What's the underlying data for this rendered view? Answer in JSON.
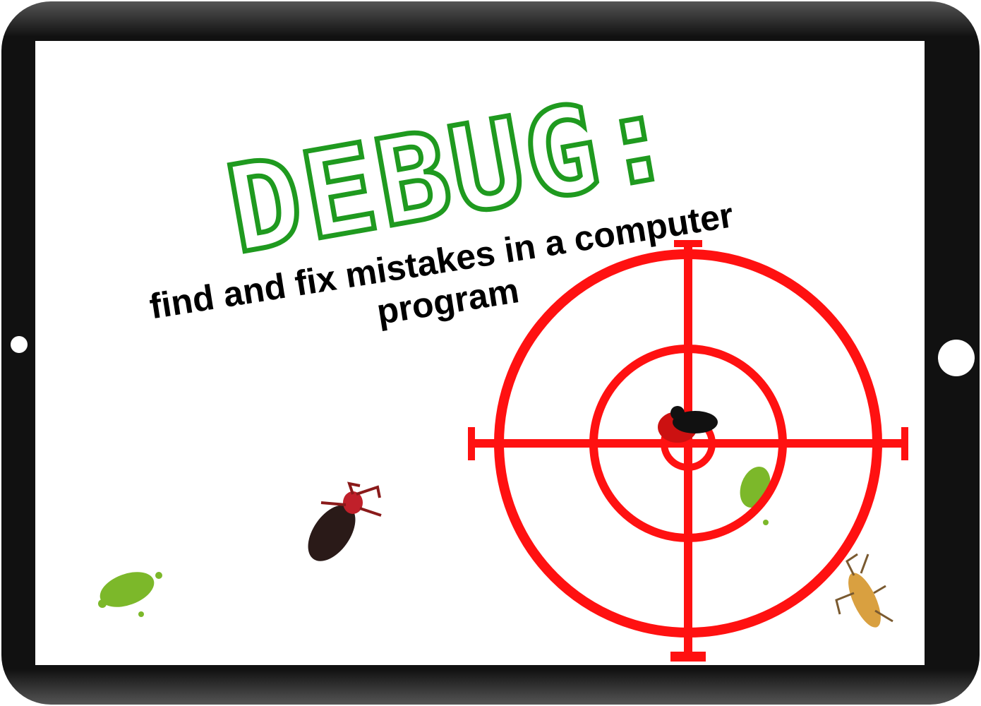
{
  "title": "DEBUG:",
  "subtitle": "find and fix mistakes in a computer program"
}
